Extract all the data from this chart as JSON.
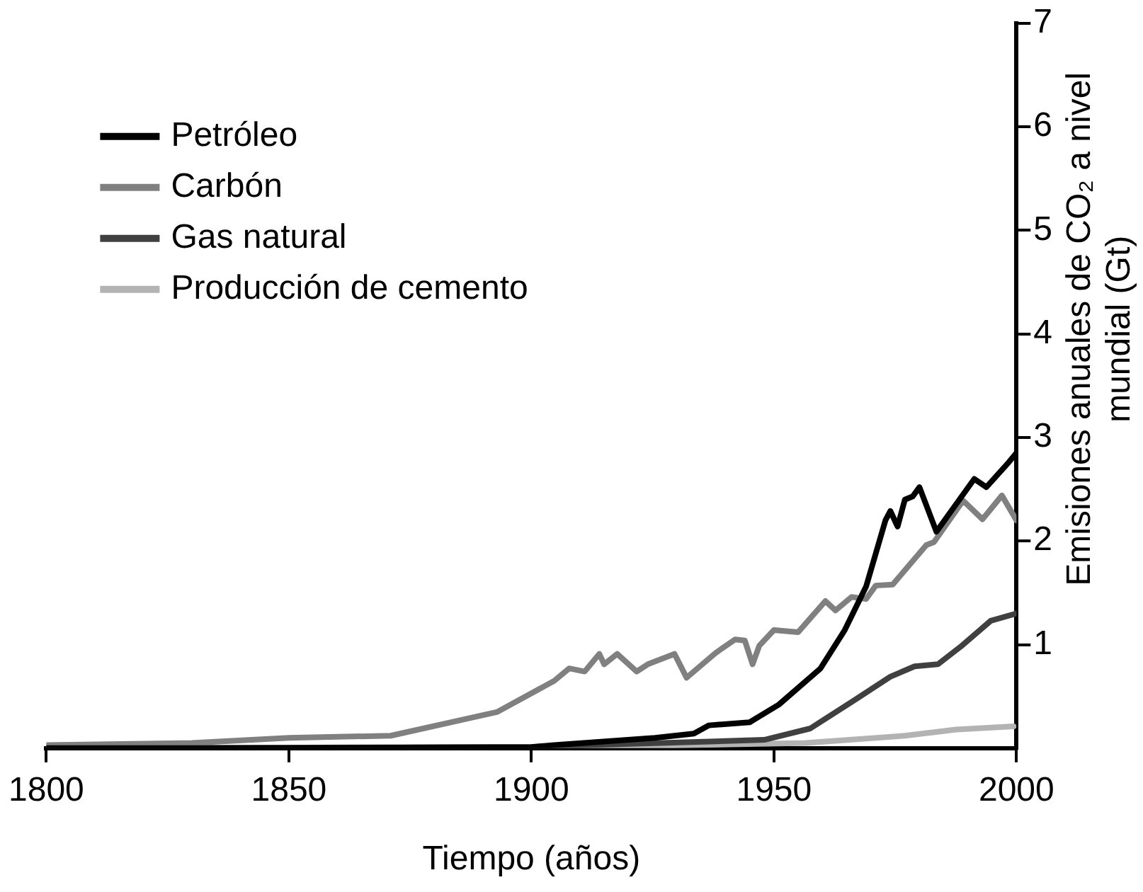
{
  "chart_data": {
    "type": "line",
    "xlabel": "Tiempo (años)",
    "ylabel": "Emisiones anuales de CO₂ a nivel mundial (Gt)",
    "xlim": [
      1800,
      2000
    ],
    "xticks": [
      1800,
      1850,
      1900,
      1950,
      2000
    ],
    "ylim": [
      0,
      7
    ],
    "yticks": [
      1,
      2,
      3,
      4,
      5,
      6,
      7
    ],
    "grid": false,
    "legend": "top left",
    "marker": "none",
    "line_style": "solid",
    "series": [
      {
        "name": "Petróleo",
        "color": "#000000",
        "x": [
          1800,
          1850,
          1900,
          1904.7,
          1925.5,
          1933.5,
          1936.6,
          1945,
          1951,
          1959.6,
          1964.6,
          1969,
          1973,
          1974,
          1975.5,
          1977,
          1978.6,
          1980,
          1983.5,
          1991.3,
          1993.8,
          1998.4,
          2000
        ],
        "values": [
          0,
          0,
          0.01,
          0.03,
          0.1,
          0.14,
          0.22,
          0.25,
          0.42,
          0.77,
          1.14,
          1.56,
          2.2,
          2.29,
          2.14,
          2.4,
          2.43,
          2.52,
          2.09,
          2.6,
          2.52,
          2.76,
          2.85
        ]
      },
      {
        "name": "Carbón",
        "color": "#808080",
        "x": [
          1800,
          1830,
          1850,
          1871,
          1893,
          1904.7,
          1907.8,
          1911,
          1914,
          1915,
          1917.7,
          1921.7,
          1924,
          1929.5,
          1932,
          1938,
          1942,
          1944,
          1945.6,
          1947,
          1950,
          1955,
          1960.6,
          1962.7,
          1966,
          1969,
          1971,
          1974.5,
          1981.4,
          1983,
          1989,
          1993,
          1997,
          2000
        ],
        "values": [
          0.03,
          0.05,
          0.1,
          0.12,
          0.35,
          0.65,
          0.77,
          0.74,
          0.91,
          0.81,
          0.91,
          0.74,
          0.81,
          0.91,
          0.68,
          0.92,
          1.05,
          1.04,
          0.81,
          0.99,
          1.14,
          1.12,
          1.42,
          1.33,
          1.46,
          1.44,
          1.57,
          1.58,
          1.96,
          1.99,
          2.39,
          2.21,
          2.44,
          2.2
        ]
      },
      {
        "name": "Gas natural",
        "color": "#404040",
        "x": [
          1800,
          1900,
          1904.7,
          1948,
          1957.5,
          1966.8,
          1974,
          1979,
          1983.8,
          1988.5,
          1994.7,
          2000
        ],
        "values": [
          0,
          0.01,
          0.02,
          0.08,
          0.19,
          0.47,
          0.69,
          0.79,
          0.81,
          0.98,
          1.23,
          1.3
        ]
      },
      {
        "name": "Producción de cemento",
        "color": "#b3b3b3",
        "x": [
          1900,
          1956.5,
          1977,
          1987.6,
          1999.4
        ],
        "values": [
          0,
          0.05,
          0.12,
          0.18,
          0.21
        ]
      }
    ]
  }
}
